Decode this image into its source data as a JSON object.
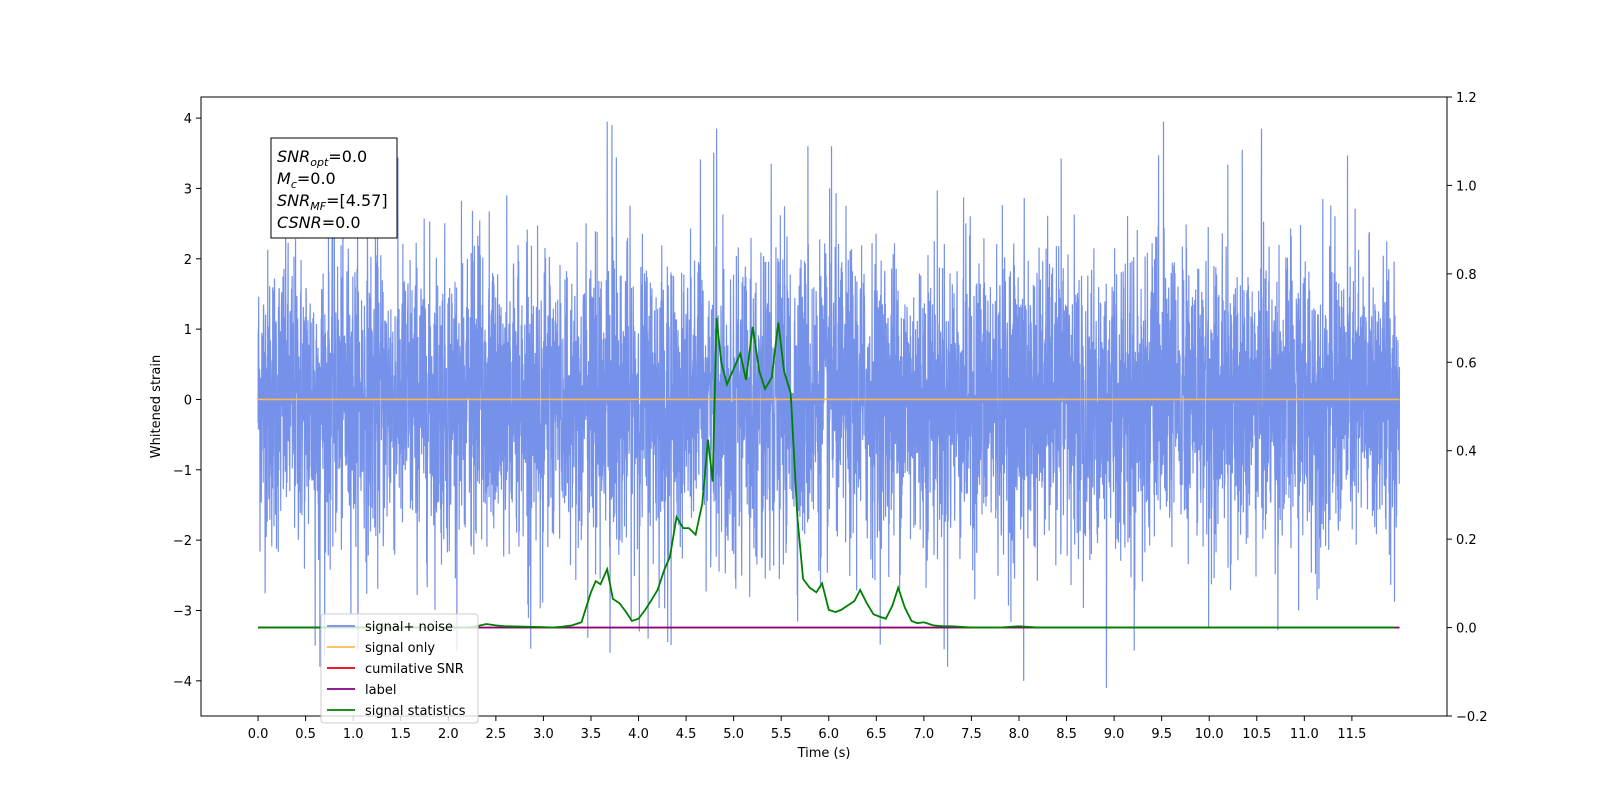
{
  "chart_data": {
    "type": "line",
    "xlabel": "Time (s)",
    "ylabel": "Whitened strain",
    "xlim": [
      -0.6,
      12.5
    ],
    "ylim": [
      -4.5,
      4.3
    ],
    "y2lim": [
      -0.2,
      1.2
    ],
    "x_ticks": [
      0.0,
      0.5,
      1.0,
      1.5,
      2.0,
      2.5,
      3.0,
      3.5,
      4.0,
      4.5,
      5.0,
      5.5,
      6.0,
      6.5,
      7.0,
      7.5,
      8.0,
      8.5,
      9.0,
      9.5,
      10.0,
      10.5,
      11.0,
      11.5
    ],
    "x_tick_labels": [
      "0.0",
      "0.5",
      "1.0",
      "1.5",
      "2.0",
      "2.5",
      "3.0",
      "3.5",
      "4.0",
      "4.5",
      "5.0",
      "5.5",
      "6.0",
      "6.5",
      "7.0",
      "7.5",
      "8.0",
      "8.5",
      "9.0",
      "9.5",
      "10.0",
      "10.5",
      "11.0",
      "11.5"
    ],
    "y_ticks": [
      -4,
      -3,
      -2,
      -1,
      0,
      1,
      2,
      3,
      4
    ],
    "y_tick_labels": [
      "−4",
      "−3",
      "−2",
      "−1",
      "0",
      "1",
      "2",
      "3",
      "4"
    ],
    "y2_ticks": [
      -0.2,
      0.0,
      0.2,
      0.4,
      0.6,
      0.8,
      1.0,
      1.2
    ],
    "y2_tick_labels": [
      "−0.2",
      "0.0",
      "0.2",
      "0.4",
      "0.6",
      "0.8",
      "1.0",
      "1.2"
    ],
    "grid": false,
    "legend_position": "lower-left",
    "series": [
      {
        "name": "signal+ noise",
        "color": "#6f8be8",
        "axis": "left",
        "x_range": [
          0.0,
          12.0
        ],
        "amplitude_range": [
          -4.1,
          3.95
        ],
        "peaks": [
          {
            "x": 3.67,
            "y": 3.95
          },
          {
            "x": 3.72,
            "y": 3.9
          },
          {
            "x": 4.82,
            "y": 3.85
          },
          {
            "x": 9.52,
            "y": 3.95
          },
          {
            "x": 10.55,
            "y": 3.85
          },
          {
            "x": 5.78,
            "y": 3.6
          },
          {
            "x": 6.03,
            "y": 3.6
          },
          {
            "x": 0.65,
            "y": -3.8
          },
          {
            "x": 0.6,
            "y": -3.5
          },
          {
            "x": 7.25,
            "y": -3.8
          },
          {
            "x": 8.05,
            "y": -4.0
          },
          {
            "x": 8.92,
            "y": -4.1
          },
          {
            "x": 4.1,
            "y": -3.4
          },
          {
            "x": 3.7,
            "y": -3.6
          }
        ]
      },
      {
        "name": "signal only",
        "color": "#ffb84d",
        "axis": "left",
        "x": [
          0.0,
          12.0
        ],
        "y": [
          0.0,
          0.0
        ]
      },
      {
        "name": "cumilative SNR",
        "color": "#e8000b",
        "axis": "right",
        "x": [
          0.0,
          12.0
        ],
        "y": [
          0.0,
          0.0
        ]
      },
      {
        "name": "label",
        "color": "#800080",
        "axis": "right",
        "x": [
          0.0,
          12.0
        ],
        "y": [
          0.0,
          0.0
        ]
      },
      {
        "name": "signal statistics",
        "color": "#008000",
        "axis": "right",
        "x": [
          0.0,
          1.0,
          2.0,
          2.2,
          2.3,
          2.4,
          2.5,
          2.6,
          2.8,
          3.0,
          3.1,
          3.2,
          3.3,
          3.4,
          3.5,
          3.55,
          3.6,
          3.67,
          3.73,
          3.8,
          3.87,
          3.93,
          4.0,
          4.07,
          4.13,
          4.2,
          4.27,
          4.33,
          4.4,
          4.47,
          4.53,
          4.6,
          4.67,
          4.73,
          4.78,
          4.82,
          4.87,
          4.93,
          5.0,
          5.07,
          5.13,
          5.2,
          5.27,
          5.33,
          5.4,
          5.47,
          5.53,
          5.6,
          5.67,
          5.73,
          5.8,
          5.87,
          5.93,
          6.0,
          6.07,
          6.13,
          6.2,
          6.27,
          6.33,
          6.4,
          6.47,
          6.53,
          6.6,
          6.67,
          6.73,
          6.8,
          6.87,
          6.93,
          7.0,
          7.1,
          7.2,
          7.3,
          7.5,
          7.8,
          8.0,
          8.2,
          8.5,
          9.0,
          10.0,
          11.0,
          11.95
        ],
        "y": [
          0.0,
          0.0,
          0.0,
          0.0,
          0.003,
          0.008,
          0.005,
          0.003,
          0.002,
          0.001,
          0.0,
          0.002,
          0.005,
          0.012,
          0.08,
          0.105,
          0.098,
          0.132,
          0.065,
          0.055,
          0.035,
          0.015,
          0.02,
          0.04,
          0.06,
          0.085,
          0.13,
          0.16,
          0.25,
          0.225,
          0.225,
          0.21,
          0.28,
          0.425,
          0.33,
          0.7,
          0.6,
          0.55,
          0.585,
          0.62,
          0.56,
          0.68,
          0.58,
          0.54,
          0.565,
          0.69,
          0.58,
          0.53,
          0.25,
          0.11,
          0.09,
          0.08,
          0.1,
          0.04,
          0.035,
          0.04,
          0.05,
          0.06,
          0.085,
          0.055,
          0.03,
          0.025,
          0.02,
          0.05,
          0.09,
          0.045,
          0.015,
          0.01,
          0.012,
          0.005,
          0.003,
          0.003,
          0.0,
          0.0,
          0.003,
          0.0,
          0.0,
          0.0,
          0.0,
          0.0,
          0.0
        ]
      }
    ]
  },
  "annotation": {
    "lines": [
      {
        "var": "SNR",
        "sub": "opt",
        "value": "=0.0"
      },
      {
        "var": "M",
        "sub": "c",
        "value": "=0.0"
      },
      {
        "var": "SNR",
        "sub": "MF",
        "value": "=[4.57]"
      },
      {
        "var": "CSNR",
        "sub": "",
        "value": "=0.0"
      }
    ]
  },
  "legend_overlap_text": "signal only"
}
